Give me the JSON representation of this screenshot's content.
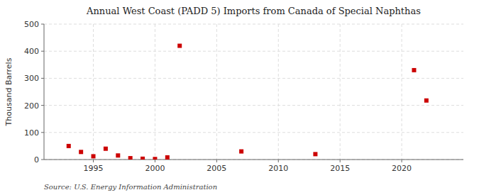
{
  "chart_data": {
    "type": "scatter",
    "title": "Annual West Coast (PADD 5) Imports from Canada of Special Naphthas",
    "ylabel": "Thousand Barrels",
    "annotation": "Source: U.S. Energy Information Administration",
    "x": [
      1993,
      1994,
      1995,
      1996,
      1997,
      1998,
      1999,
      2000,
      2001,
      2002,
      2007,
      2013,
      2021,
      2022
    ],
    "values": [
      50,
      28,
      12,
      40,
      15,
      5,
      3,
      2,
      8,
      420,
      30,
      20,
      330,
      218
    ],
    "color": "#cc0000",
    "marker": "square",
    "xlim": [
      1991,
      2025
    ],
    "ylim": [
      0,
      500
    ],
    "xticks": [
      1995,
      2000,
      2005,
      2010,
      2015,
      2020
    ],
    "yticks": [
      0,
      100,
      200,
      300,
      400,
      500
    ],
    "grid": true
  }
}
